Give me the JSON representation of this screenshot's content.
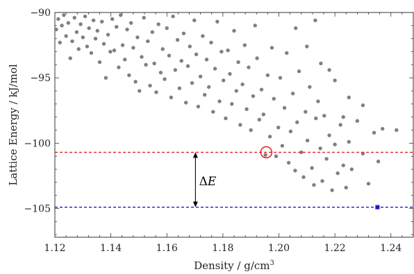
{
  "chart_data": {
    "type": "scatter",
    "title": "",
    "xlabel": "Density / g/cm",
    "xlabel_superscript": "3",
    "ylabel": "Lattice Energy / kJ/mol",
    "xlim": [
      1.12,
      1.248
    ],
    "ylim": [
      -107.2,
      -90
    ],
    "x_ticks": [
      1.12,
      1.14,
      1.16,
      1.18,
      1.2,
      1.22,
      1.24
    ],
    "x_tick_labels": [
      "1.12",
      "1.14",
      "1.16",
      "1.18",
      "1.20",
      "1.22",
      "1.24"
    ],
    "y_ticks": [
      -90,
      -95,
      -100,
      -105
    ],
    "y_tick_labels": [
      "−90",
      "−95",
      "−100",
      "−105"
    ],
    "grid": false,
    "colors": {
      "points": "#808080",
      "highlight_circle": "#e02020",
      "red_line": "#e02020",
      "blue_line": "#1a1acc",
      "blue_point": "#1a1acc"
    },
    "series": [
      {
        "points": [
          [
            1.1205,
            -91.3
          ],
          [
            1.1212,
            -90.5
          ],
          [
            1.1218,
            -92.3
          ],
          [
            1.1225,
            -91.0
          ],
          [
            1.1232,
            -90.2
          ],
          [
            1.124,
            -91.8
          ],
          [
            1.1248,
            -90.8
          ],
          [
            1.1255,
            -93.5
          ],
          [
            1.1262,
            -92.2
          ],
          [
            1.127,
            -90.4
          ],
          [
            1.1278,
            -91.5
          ],
          [
            1.1285,
            -92.8
          ],
          [
            1.1292,
            -90.9
          ],
          [
            1.13,
            -91.9
          ],
          [
            1.1308,
            -90.3
          ],
          [
            1.1315,
            -92.6
          ],
          [
            1.1322,
            -91.2
          ],
          [
            1.133,
            -93.1
          ],
          [
            1.1338,
            -90.6
          ],
          [
            1.1345,
            -92.0
          ],
          [
            1.1352,
            -91.4
          ],
          [
            1.136,
            -93.8
          ],
          [
            1.1368,
            -90.7
          ],
          [
            1.1375,
            -92.4
          ],
          [
            1.1382,
            -95.0
          ],
          [
            1.139,
            -91.7
          ],
          [
            1.1398,
            -93.0
          ],
          [
            1.1405,
            -90.5
          ],
          [
            1.1412,
            -92.9
          ],
          [
            1.142,
            -91.1
          ],
          [
            1.1428,
            -94.2
          ],
          [
            1.1435,
            -90.2
          ],
          [
            1.1442,
            -92.5
          ],
          [
            1.145,
            -93.6
          ],
          [
            1.1458,
            -91.3
          ],
          [
            1.1465,
            -94.8
          ],
          [
            1.1472,
            -90.8
          ],
          [
            1.148,
            -92.7
          ],
          [
            1.1488,
            -95.3
          ],
          [
            1.1495,
            -91.9
          ],
          [
            1.1502,
            -96.0
          ],
          [
            1.151,
            -93.4
          ],
          [
            1.1518,
            -90.4
          ],
          [
            1.1525,
            -94.0
          ],
          [
            1.1532,
            -92.2
          ],
          [
            1.154,
            -95.6
          ],
          [
            1.1548,
            -91.5
          ],
          [
            1.1555,
            -93.9
          ],
          [
            1.1562,
            -96.1
          ],
          [
            1.157,
            -90.9
          ],
          [
            1.1578,
            -94.6
          ],
          [
            1.1585,
            -92.8
          ],
          [
            1.1592,
            -95.1
          ],
          [
            1.16,
            -91.2
          ],
          [
            1.1608,
            -93.3
          ],
          [
            1.1615,
            -96.5
          ],
          [
            1.1622,
            -90.3
          ],
          [
            1.163,
            -94.4
          ],
          [
            1.1638,
            -92.1
          ],
          [
            1.1645,
            -95.8
          ],
          [
            1.1652,
            -93.7
          ],
          [
            1.166,
            -91.6
          ],
          [
            1.1668,
            -96.9
          ],
          [
            1.1675,
            -94.1
          ],
          [
            1.1682,
            -92.6
          ],
          [
            1.169,
            -95.4
          ],
          [
            1.1698,
            -90.6
          ],
          [
            1.1705,
            -93.2
          ],
          [
            1.1712,
            -97.2
          ],
          [
            1.172,
            -94.9
          ],
          [
            1.1728,
            -91.8
          ],
          [
            1.1735,
            -96.3
          ],
          [
            1.1742,
            -93.6
          ],
          [
            1.175,
            -95.7
          ],
          [
            1.1758,
            -92.3
          ],
          [
            1.1765,
            -97.6
          ],
          [
            1.1772,
            -94.3
          ],
          [
            1.178,
            -90.7
          ],
          [
            1.1788,
            -96.8
          ],
          [
            1.1795,
            -93.0
          ],
          [
            1.1802,
            -95.2
          ],
          [
            1.181,
            -98.1
          ],
          [
            1.1818,
            -92.9
          ],
          [
            1.1825,
            -94.7
          ],
          [
            1.1832,
            -97.0
          ],
          [
            1.184,
            -91.4
          ],
          [
            1.1848,
            -96.0
          ],
          [
            1.1855,
            -93.8
          ],
          [
            1.1862,
            -98.6
          ],
          [
            1.187,
            -95.5
          ],
          [
            1.1878,
            -92.5
          ],
          [
            1.1885,
            -97.4
          ],
          [
            1.1892,
            -94.2
          ],
          [
            1.19,
            -99.0
          ],
          [
            1.1908,
            -96.4
          ],
          [
            1.1915,
            -91.0
          ],
          [
            1.1922,
            -93.5
          ],
          [
            1.193,
            -98.2
          ],
          [
            1.1938,
            -95.9
          ],
          [
            1.1945,
            -97.8
          ],
          [
            1.1952,
            -100.9
          ],
          [
            1.196,
            -94.8
          ],
          [
            1.1968,
            -99.5
          ],
          [
            1.1975,
            -92.7
          ],
          [
            1.1982,
            -96.6
          ],
          [
            1.199,
            -101.0
          ],
          [
            1.1998,
            -98.8
          ],
          [
            1.2005,
            -95.0
          ],
          [
            1.2012,
            -100.2
          ],
          [
            1.202,
            -97.3
          ],
          [
            1.2028,
            -93.1
          ],
          [
            1.2035,
            -101.5
          ],
          [
            1.2042,
            -99.1
          ],
          [
            1.205,
            -96.2
          ],
          [
            1.2058,
            -102.1
          ],
          [
            1.2065,
            -98.4
          ],
          [
            1.2072,
            -94.5
          ],
          [
            1.208,
            -100.7
          ],
          [
            1.2088,
            -102.6
          ],
          [
            1.2095,
            -97.6
          ],
          [
            1.2102,
            -99.8
          ],
          [
            1.211,
            -95.7
          ],
          [
            1.2118,
            -101.9
          ],
          [
            1.2125,
            -103.2
          ],
          [
            1.2132,
            -98.1
          ],
          [
            1.214,
            -96.8
          ],
          [
            1.2148,
            -100.4
          ],
          [
            1.2155,
            -102.9
          ],
          [
            1.2162,
            -97.9
          ],
          [
            1.217,
            -101.2
          ],
          [
            1.218,
            -99.4
          ],
          [
            1.219,
            -103.6
          ],
          [
            1.22,
            -100.1
          ],
          [
            1.221,
            -102.3
          ],
          [
            1.222,
            -98.6
          ],
          [
            1.223,
            -101.7
          ],
          [
            1.224,
            -103.4
          ],
          [
            1.225,
            -99.9
          ],
          [
            1.226,
            -102.0
          ],
          [
            1.228,
            -98.3
          ],
          [
            1.23,
            -100.8
          ],
          [
            1.232,
            -103.1
          ],
          [
            1.234,
            -99.2
          ],
          [
            1.2355,
            -101.4
          ],
          [
            1.237,
            -98.9
          ],
          [
            1.242,
            -99.0
          ],
          [
            1.206,
            -91.2
          ],
          [
            1.21,
            -92.6
          ],
          [
            1.215,
            -93.9
          ],
          [
            1.22,
            -95.2
          ],
          [
            1.225,
            -96.5
          ],
          [
            1.23,
            -97.1
          ],
          [
            1.213,
            -90.6
          ],
          [
            1.218,
            -94.4
          ],
          [
            1.223,
            -98.0
          ]
        ]
      }
    ],
    "highlight_point": [
      1.1955,
      -100.7
    ],
    "red_line_y": -100.7,
    "blue_line_y": -104.9,
    "blue_point": [
      1.2352,
      -104.9
    ],
    "arrow": {
      "x": 1.1702,
      "y1": -100.7,
      "y2": -104.9
    },
    "annotation": {
      "delta": "Δ",
      "var": "E",
      "x": 1.1715,
      "y": -102.9
    }
  }
}
